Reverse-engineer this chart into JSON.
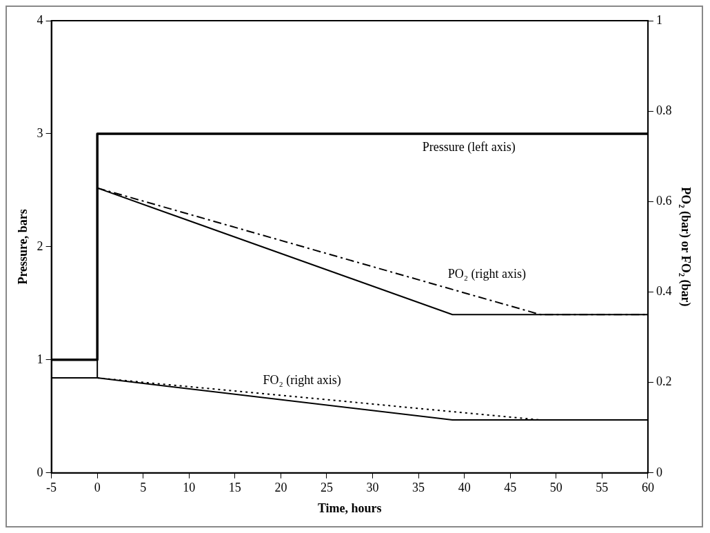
{
  "chart_data": {
    "type": "line",
    "xlabel": "Time, hours",
    "ylabel": "Pressure, bars",
    "y2label": "PO₂ (bar) or FO₂ (bar)",
    "xlim": [
      -5,
      60
    ],
    "xticks": [
      -5,
      0,
      5,
      10,
      15,
      20,
      25,
      30,
      35,
      40,
      45,
      50,
      55,
      60
    ],
    "ylim": [
      0,
      4
    ],
    "yticks": [
      0,
      1,
      2,
      3,
      4
    ],
    "y2lim": [
      0,
      1
    ],
    "y2ticks": [
      0,
      0.2,
      0.4,
      0.6,
      0.8,
      1
    ],
    "grid": false,
    "legend": false,
    "marker": "none",
    "series": [
      {
        "name": "Pressure (left axis)",
        "color": "#000000",
        "x": [
          -5,
          0,
          0,
          60
        ],
        "values": [
          1,
          1,
          3,
          3
        ],
        "line_style": "solid"
      },
      {
        "color": "#000000",
        "x": [
          -5,
          0,
          0,
          38.7,
          60
        ],
        "values": [
          0.21,
          0.21,
          0.63,
          0.35,
          0.35
        ],
        "axis": "y2",
        "line_style": "solid"
      },
      {
        "name": "PO₂ (right axis)",
        "color": "#000000",
        "x": [
          0,
          48.3,
          60
        ],
        "values": [
          0.63,
          0.35,
          0.35
        ],
        "axis": "y2",
        "line_style": "dashdot"
      },
      {
        "color": "#000000",
        "x": [
          -5,
          0,
          38.7,
          60
        ],
        "values": [
          0.21,
          0.21,
          0.117,
          0.117
        ],
        "axis": "y2",
        "line_style": "solid"
      },
      {
        "name": "FO₂ (right axis)",
        "color": "#000000",
        "x": [
          0,
          48.3,
          60
        ],
        "values": [
          0.21,
          0.117,
          0.117
        ],
        "axis": "y2",
        "line_style": "dotted"
      }
    ]
  }
}
